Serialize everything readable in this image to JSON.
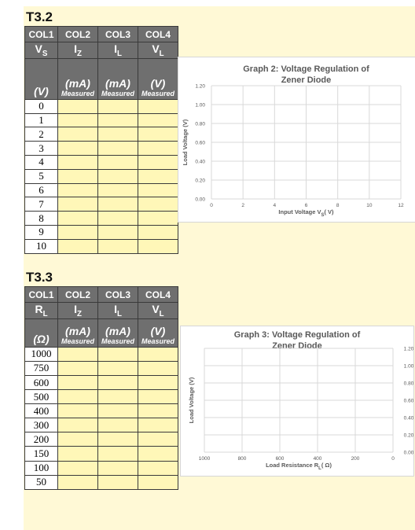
{
  "t32": {
    "title": "T3.2",
    "col_labels": [
      "COL1",
      "COL2",
      "COL3",
      "COL4"
    ],
    "symbols": [
      "V_S",
      "I_Z",
      "I_L",
      "V_L"
    ],
    "units": [
      "(V)",
      "(mA)",
      "(mA)",
      "(V)"
    ],
    "measured_label": "Measured",
    "rows": [
      "0",
      "1",
      "2",
      "3",
      "4",
      "5",
      "6",
      "7",
      "8",
      "9",
      "10"
    ]
  },
  "t33": {
    "title": "T3.3",
    "col_labels": [
      "COL1",
      "COL2",
      "COL3",
      "COL4"
    ],
    "symbols": [
      "R_L",
      "I_Z",
      "I_L",
      "V_L"
    ],
    "units": [
      "(Ω)",
      "(mA)",
      "(mA)",
      "(V)"
    ],
    "measured_label": "Measured",
    "rows": [
      "1000",
      "750",
      "600",
      "500",
      "400",
      "300",
      "200",
      "150",
      "100",
      "50"
    ]
  },
  "chart_data": [
    {
      "type": "scatter",
      "title": "Graph 2: Voltage Regulation of Zener Diode",
      "xlabel": "Input Voltage V_S( V)",
      "ylabel": "Load Voltage (V)",
      "xlim": [
        0,
        12
      ],
      "ylim": [
        0,
        1.2
      ],
      "xticks": [
        "0",
        "2",
        "4",
        "6",
        "8",
        "10",
        "12"
      ],
      "yticks": [
        "0.00",
        "0.20",
        "0.40",
        "0.60",
        "0.80",
        "1.00",
        "1.20"
      ],
      "grid": true,
      "series": []
    },
    {
      "type": "scatter",
      "title": "Graph 3: Voltage Regulation of Zener Diode",
      "xlabel": "Load Resistance R_L( Ω)",
      "ylabel": "Load Voltage (V)",
      "xlim": [
        1000,
        0
      ],
      "ylim": [
        0,
        1.2
      ],
      "xticks": [
        "1000",
        "800",
        "600",
        "400",
        "200",
        "0"
      ],
      "yticks": [
        "0.00",
        "0.20",
        "0.40",
        "0.60",
        "0.80",
        "1.00",
        "1.20"
      ],
      "yaxis_side": "right",
      "grid": true,
      "series": []
    }
  ]
}
